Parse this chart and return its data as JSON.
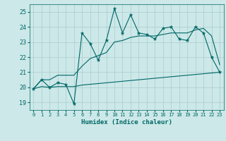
{
  "title": "",
  "xlabel": "Humidex (Indice chaleur)",
  "background_color": "#cce8e8",
  "grid_color": "#aacccc",
  "line_color": "#006666",
  "xlim": [
    -0.5,
    23.5
  ],
  "ylim": [
    18.5,
    25.5
  ],
  "yticks": [
    19,
    20,
    21,
    22,
    23,
    24,
    25
  ],
  "xtick_labels": [
    "0",
    "1",
    "2",
    "3",
    "4",
    "5",
    "6",
    "7",
    "8",
    "9",
    "10",
    "11",
    "12",
    "13",
    "14",
    "15",
    "16",
    "17",
    "18",
    "19",
    "20",
    "21",
    "22",
    "23"
  ],
  "x": [
    0,
    1,
    2,
    3,
    4,
    5,
    6,
    7,
    8,
    9,
    10,
    11,
    12,
    13,
    14,
    15,
    16,
    17,
    18,
    19,
    20,
    21,
    22,
    23
  ],
  "y_main": [
    19.9,
    20.5,
    20.0,
    20.3,
    20.2,
    18.9,
    23.6,
    22.9,
    21.8,
    23.1,
    25.2,
    23.6,
    24.8,
    23.6,
    23.5,
    23.2,
    23.9,
    24.0,
    23.2,
    23.1,
    24.0,
    23.6,
    22.0,
    21.0
  ],
  "y_low": [
    19.9,
    20.05,
    20.0,
    20.05,
    20.05,
    20.05,
    20.15,
    20.2,
    20.25,
    20.3,
    20.35,
    20.4,
    20.45,
    20.5,
    20.55,
    20.6,
    20.65,
    20.7,
    20.75,
    20.8,
    20.85,
    20.9,
    20.95,
    21.0
  ],
  "y_high": [
    19.9,
    20.5,
    20.5,
    20.8,
    20.8,
    20.8,
    21.4,
    21.9,
    22.1,
    22.3,
    23.0,
    23.1,
    23.3,
    23.4,
    23.4,
    23.4,
    23.5,
    23.6,
    23.6,
    23.6,
    23.8,
    23.9,
    23.4,
    21.5
  ]
}
